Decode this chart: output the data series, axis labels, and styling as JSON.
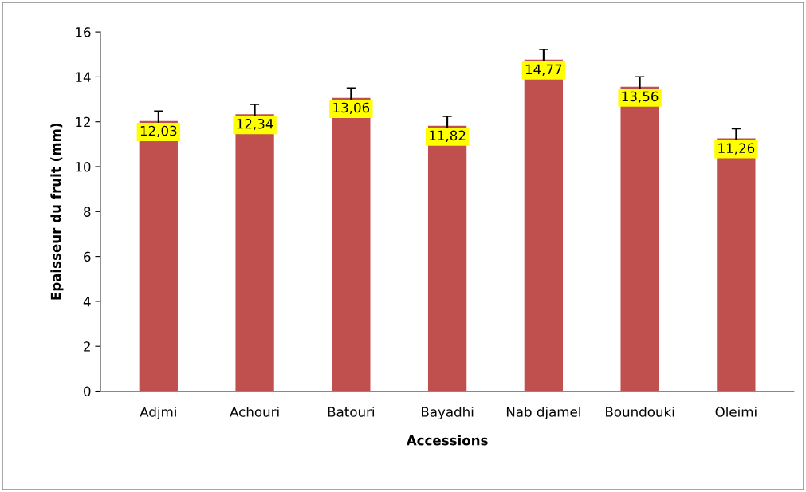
{
  "chart_data": {
    "type": "bar",
    "xlabel": "Accessions",
    "ylabel": "Epaisseur du fruit (mm)",
    "categories": [
      "Adjmi",
      "Achouri",
      "Batouri",
      "Bayadhi",
      "Nab djamel",
      "Boundouki",
      "Oleimi"
    ],
    "values": [
      12.03,
      12.34,
      13.06,
      11.82,
      14.77,
      13.56,
      11.26
    ],
    "errors": [
      0.45,
      0.43,
      0.45,
      0.42,
      0.45,
      0.45,
      0.43
    ],
    "value_labels": [
      "12,03",
      "12,34",
      "13,06",
      "11,82",
      "14,77",
      "13,56",
      "11,26"
    ],
    "color": "#c0504d",
    "ylim": [
      0,
      16
    ],
    "yticks": [
      0,
      2,
      4,
      6,
      8,
      10,
      12,
      14,
      16
    ],
    "grid": false,
    "legend": false
  }
}
